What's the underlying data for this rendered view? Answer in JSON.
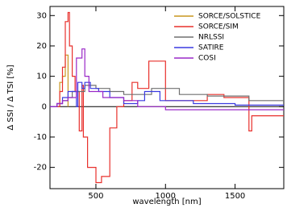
{
  "chart_data": {
    "type": "line",
    "x_label": "wavelength [nm]",
    "y_label": "Δ SSI / Δ TSI [%]",
    "xlim": [
      170,
      1850
    ],
    "ylim": [
      -27,
      33
    ],
    "xticks": [
      500,
      1000,
      1500
    ],
    "yticks": [
      -20,
      -10,
      0,
      10,
      20,
      30
    ],
    "series": [
      {
        "name": "SORCE/SOLSTICE",
        "color": "#c8961e",
        "x": [
          240,
          240,
          260,
          260,
          280,
          280,
          300,
          300
        ],
        "values": [
          0,
          8,
          8,
          10,
          10,
          17,
          17,
          0
        ]
      },
      {
        "name": "SORCE/SIM",
        "color": "#e8302c",
        "x": [
          170,
          240,
          240,
          260,
          260,
          280,
          280,
          300,
          300,
          310,
          310,
          330,
          330,
          350,
          350,
          380,
          380,
          400,
          400,
          410,
          410,
          440,
          440,
          500,
          500,
          540,
          540,
          600,
          600,
          650,
          650,
          700,
          700,
          760,
          760,
          800,
          800,
          880,
          880,
          1000,
          1000,
          1300,
          1300,
          1420,
          1420,
          1600,
          1600,
          1620,
          1620,
          1850
        ],
        "values": [
          0,
          0,
          5,
          5,
          13,
          13,
          28,
          28,
          31,
          31,
          20,
          20,
          10,
          10,
          5,
          5,
          -8,
          -8,
          7,
          7,
          -10,
          -10,
          -20,
          -20,
          -25,
          -25,
          -23,
          -23,
          -7,
          -7,
          0,
          0,
          2,
          2,
          8,
          8,
          6,
          6,
          15,
          15,
          2,
          2,
          4,
          4,
          3,
          3,
          -8,
          -8,
          -3,
          -3
        ]
      },
      {
        "name": "NRLSSI",
        "color": "#707070",
        "x": [
          170,
          220,
          220,
          260,
          260,
          300,
          300,
          330,
          330,
          420,
          420,
          500,
          500,
          600,
          600,
          700,
          700,
          900,
          900,
          1100,
          1100,
          1300,
          1300,
          1600,
          1600,
          1850
        ],
        "values": [
          0,
          0,
          1,
          1,
          2,
          2,
          3,
          3,
          5,
          5,
          7,
          7,
          6,
          6,
          5,
          5,
          4,
          4,
          6,
          6,
          4,
          4,
          3.5,
          3.5,
          2,
          2
        ]
      },
      {
        "name": "SATIRE",
        "color": "#3a3ae0",
        "x": [
          170,
          220,
          220,
          260,
          260,
          300,
          300,
          360,
          360,
          370,
          370,
          400,
          400,
          420,
          420,
          460,
          460,
          520,
          520,
          600,
          600,
          700,
          700,
          800,
          800,
          850,
          850,
          960,
          960,
          1200,
          1200,
          1500,
          1500,
          1850
        ],
        "values": [
          0,
          0,
          1,
          1,
          3,
          3,
          5,
          5,
          0,
          0,
          8,
          8,
          6,
          6,
          8,
          8,
          6,
          6,
          5,
          5,
          3,
          3,
          1,
          1,
          2,
          2,
          5,
          5,
          2,
          2,
          1,
          1,
          0.5,
          0.5
        ]
      },
      {
        "name": "COSI",
        "color": "#9a28c8",
        "x": [
          170,
          220,
          220,
          260,
          260,
          300,
          300,
          360,
          360,
          400,
          400,
          420,
          420,
          450,
          450,
          550,
          550,
          700,
          700,
          800,
          800,
          1000,
          1000,
          1850
        ],
        "values": [
          0,
          0,
          1,
          1,
          2,
          2,
          3,
          3,
          16,
          16,
          19,
          19,
          10,
          10,
          5,
          5,
          3,
          3,
          2,
          2,
          0,
          0,
          -1,
          -1
        ]
      }
    ]
  }
}
